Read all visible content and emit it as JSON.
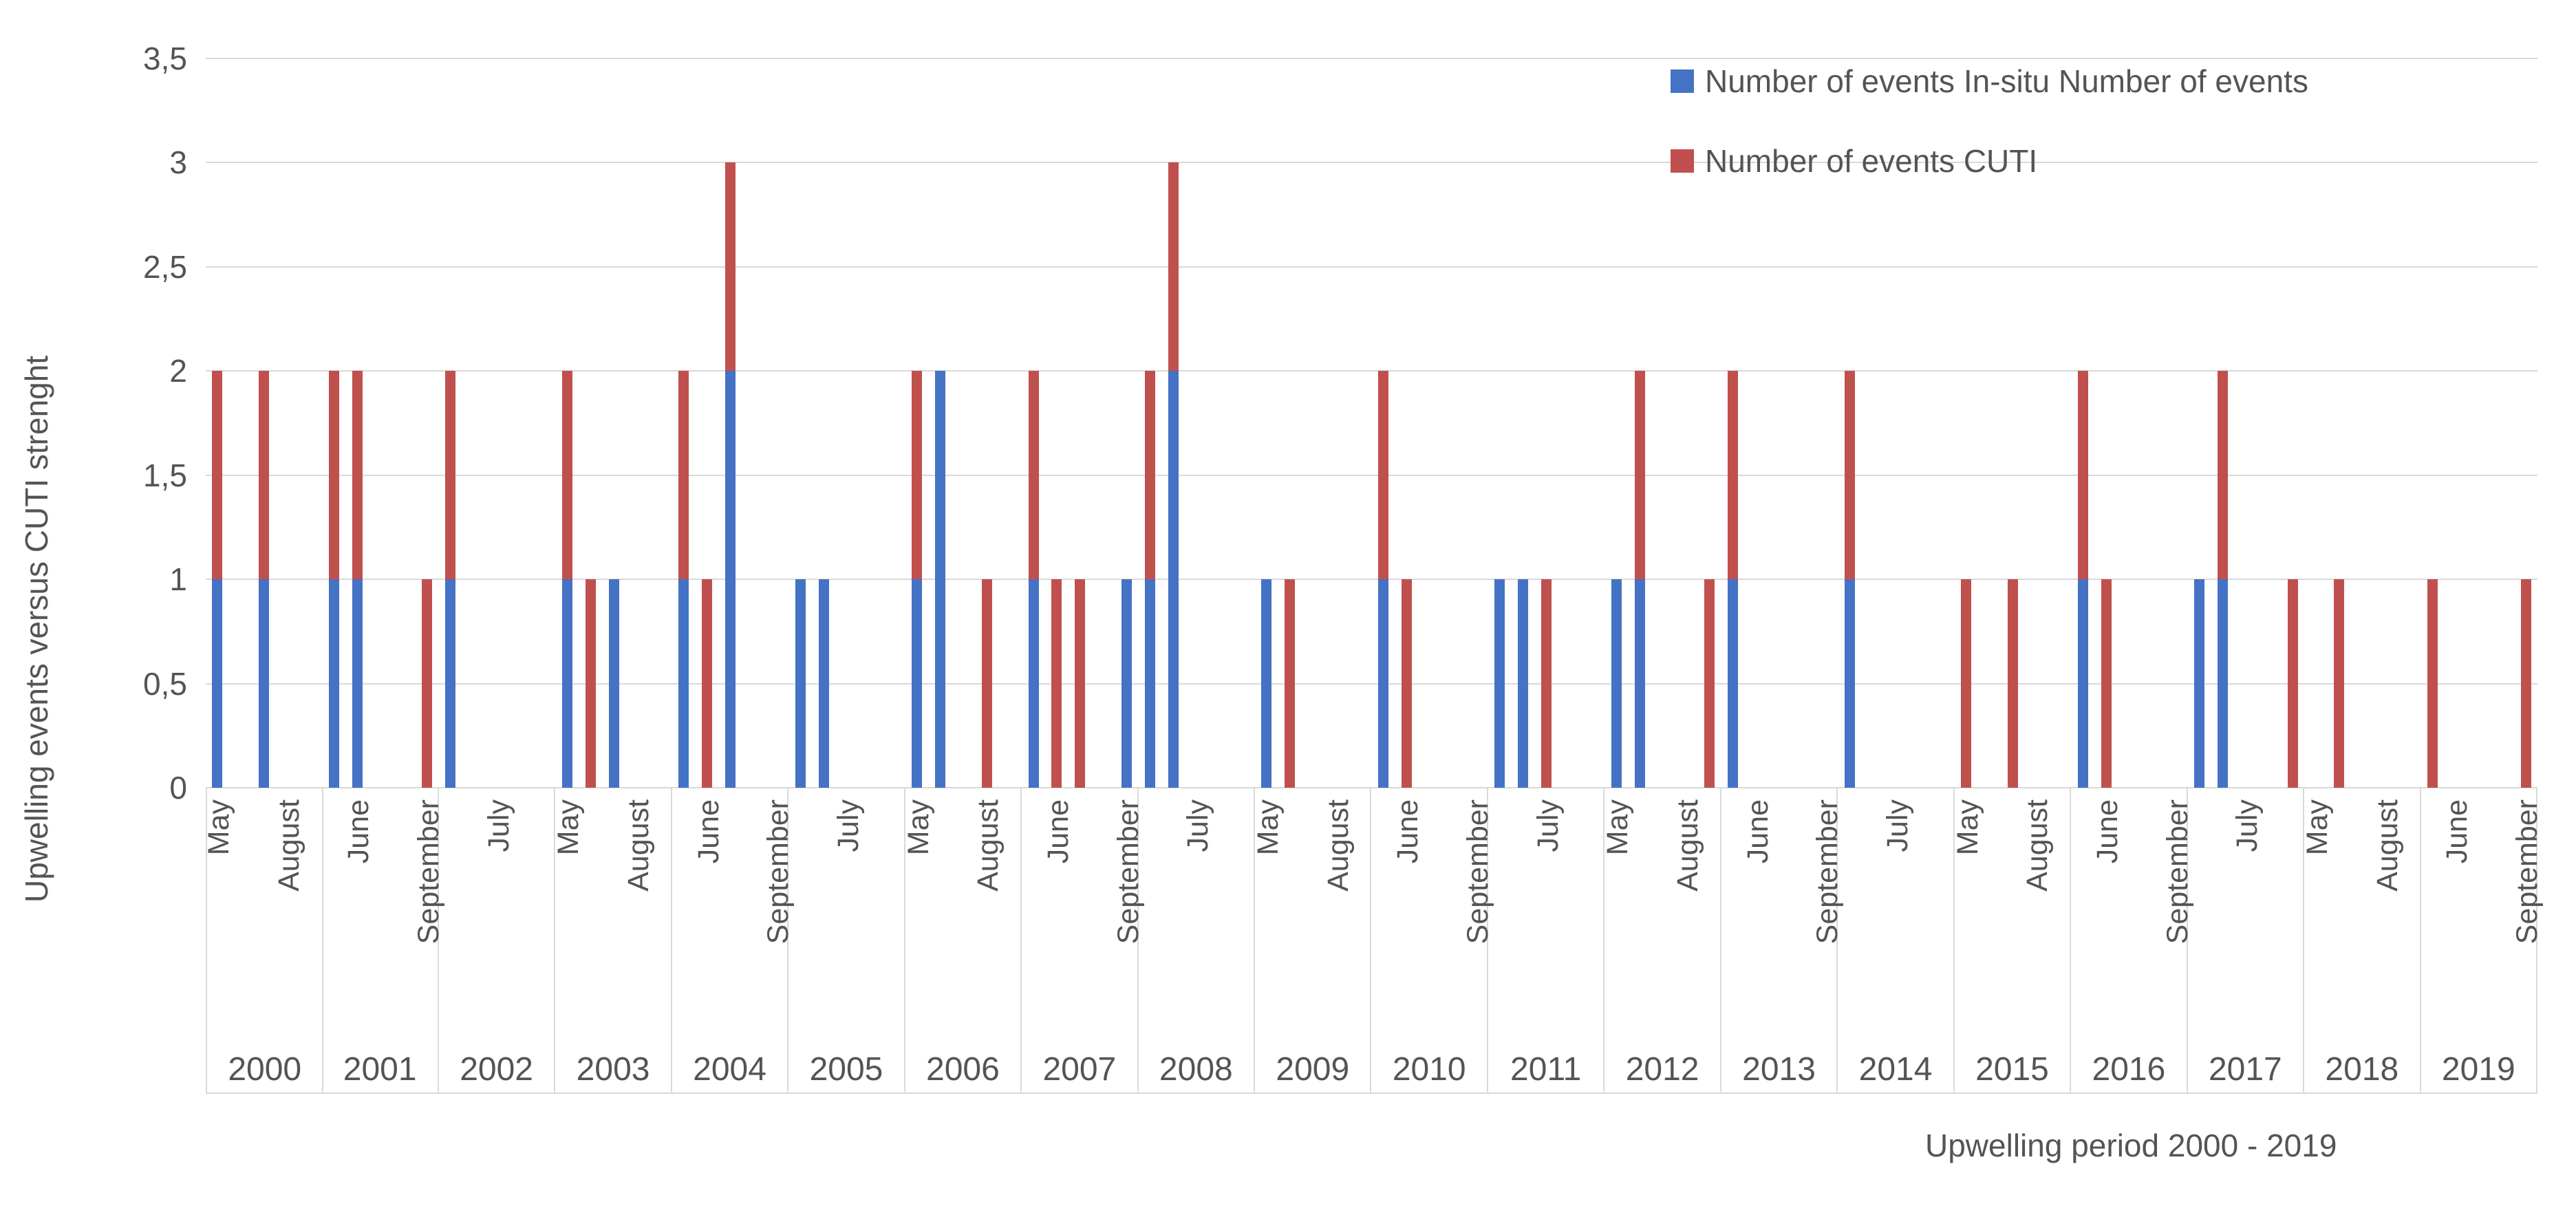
{
  "chart_data": {
    "type": "bar",
    "stacked": true,
    "title": "",
    "xlabel": "Upwelling period 2000 - 2019",
    "ylabel": "Upwelling events versus CUTI  strenght",
    "ylim": [
      0,
      3.5
    ],
    "grid": true,
    "legend_position": "top-right",
    "y_ticks": [
      {
        "label": "3,5",
        "value": 3.5
      },
      {
        "label": "3",
        "value": 3
      },
      {
        "label": "2,5",
        "value": 2.5
      },
      {
        "label": "2",
        "value": 2
      },
      {
        "label": "1,5",
        "value": 1.5
      },
      {
        "label": "1",
        "value": 1
      },
      {
        "label": "0,5",
        "value": 0.5
      },
      {
        "label": "0",
        "value": 0
      }
    ],
    "months_order": [
      "May",
      "June",
      "July",
      "August",
      "September"
    ],
    "series": [
      {
        "key": "in_situ",
        "name": "Number of events  In-situ Number of events",
        "color": "#4472C4"
      },
      {
        "key": "cuti",
        "name": "Number of events  CUTI",
        "color": "#C0504D"
      }
    ],
    "years": [
      {
        "year": "2000",
        "month_labels": [
          "May",
          "August"
        ],
        "in_situ": [
          1,
          0,
          1,
          0,
          0
        ],
        "cuti": [
          1,
          0,
          1,
          0,
          0
        ]
      },
      {
        "year": "2001",
        "month_labels": [
          "June",
          "September"
        ],
        "in_situ": [
          1,
          1,
          0,
          0,
          0
        ],
        "cuti": [
          1,
          1,
          0,
          0,
          1
        ]
      },
      {
        "year": "2002",
        "month_labels": [
          "July"
        ],
        "in_situ": [
          1,
          0,
          0,
          0,
          0
        ],
        "cuti": [
          1,
          0,
          0,
          0,
          0
        ]
      },
      {
        "year": "2003",
        "month_labels": [
          "May",
          "August"
        ],
        "in_situ": [
          1,
          0,
          1,
          0,
          0
        ],
        "cuti": [
          1,
          1,
          0,
          0,
          0
        ]
      },
      {
        "year": "2004",
        "month_labels": [
          "June",
          "September"
        ],
        "in_situ": [
          1,
          0,
          2,
          0,
          0
        ],
        "cuti": [
          1,
          1,
          1,
          0,
          0
        ]
      },
      {
        "year": "2005",
        "month_labels": [
          "July"
        ],
        "in_situ": [
          1,
          1,
          0,
          0,
          0
        ],
        "cuti": [
          0,
          0,
          0,
          0,
          0
        ]
      },
      {
        "year": "2006",
        "month_labels": [
          "May",
          "August"
        ],
        "in_situ": [
          1,
          2,
          0,
          0,
          0
        ],
        "cuti": [
          1,
          0,
          0,
          1,
          0
        ]
      },
      {
        "year": "2007",
        "month_labels": [
          "June",
          "September"
        ],
        "in_situ": [
          1,
          0,
          0,
          0,
          1
        ],
        "cuti": [
          1,
          1,
          1,
          0,
          0
        ]
      },
      {
        "year": "2008",
        "month_labels": [
          "July"
        ],
        "in_situ": [
          1,
          2,
          0,
          0,
          0
        ],
        "cuti": [
          1,
          1,
          0,
          0,
          0
        ]
      },
      {
        "year": "2009",
        "month_labels": [
          "May",
          "August"
        ],
        "in_situ": [
          1,
          0,
          0,
          0,
          0
        ],
        "cuti": [
          0,
          1,
          0,
          0,
          0
        ]
      },
      {
        "year": "2010",
        "month_labels": [
          "June",
          "September"
        ],
        "in_situ": [
          1,
          0,
          0,
          0,
          0
        ],
        "cuti": [
          1,
          1,
          0,
          0,
          0
        ]
      },
      {
        "year": "2011",
        "month_labels": [
          "July"
        ],
        "in_situ": [
          1,
          1,
          0,
          0,
          0
        ],
        "cuti": [
          0,
          0,
          1,
          0,
          0
        ]
      },
      {
        "year": "2012",
        "month_labels": [
          "May",
          "August"
        ],
        "in_situ": [
          1,
          1,
          0,
          0,
          0
        ],
        "cuti": [
          0,
          1,
          0,
          0,
          1
        ]
      },
      {
        "year": "2013",
        "month_labels": [
          "June",
          "September"
        ],
        "in_situ": [
          1,
          0,
          0,
          0,
          0
        ],
        "cuti": [
          1,
          0,
          0,
          0,
          0
        ]
      },
      {
        "year": "2014",
        "month_labels": [
          "July"
        ],
        "in_situ": [
          1,
          0,
          0,
          0,
          0
        ],
        "cuti": [
          1,
          0,
          0,
          0,
          0
        ]
      },
      {
        "year": "2015",
        "month_labels": [
          "May",
          "August"
        ],
        "in_situ": [
          0,
          0,
          0,
          0,
          0
        ],
        "cuti": [
          1,
          0,
          1,
          0,
          0
        ]
      },
      {
        "year": "2016",
        "month_labels": [
          "June",
          "September"
        ],
        "in_situ": [
          1,
          0,
          0,
          0,
          0
        ],
        "cuti": [
          1,
          1,
          0,
          0,
          0
        ]
      },
      {
        "year": "2017",
        "month_labels": [
          "July"
        ],
        "in_situ": [
          1,
          1,
          0,
          0,
          0
        ],
        "cuti": [
          0,
          1,
          0,
          0,
          1
        ]
      },
      {
        "year": "2018",
        "month_labels": [
          "May",
          "August"
        ],
        "in_situ": [
          0,
          0,
          0,
          0,
          0
        ],
        "cuti": [
          0,
          1,
          0,
          0,
          0
        ]
      },
      {
        "year": "2019",
        "month_labels": [
          "June",
          "September"
        ],
        "in_situ": [
          0,
          0,
          0,
          0,
          0
        ],
        "cuti": [
          1,
          0,
          0,
          0,
          1
        ]
      }
    ]
  }
}
